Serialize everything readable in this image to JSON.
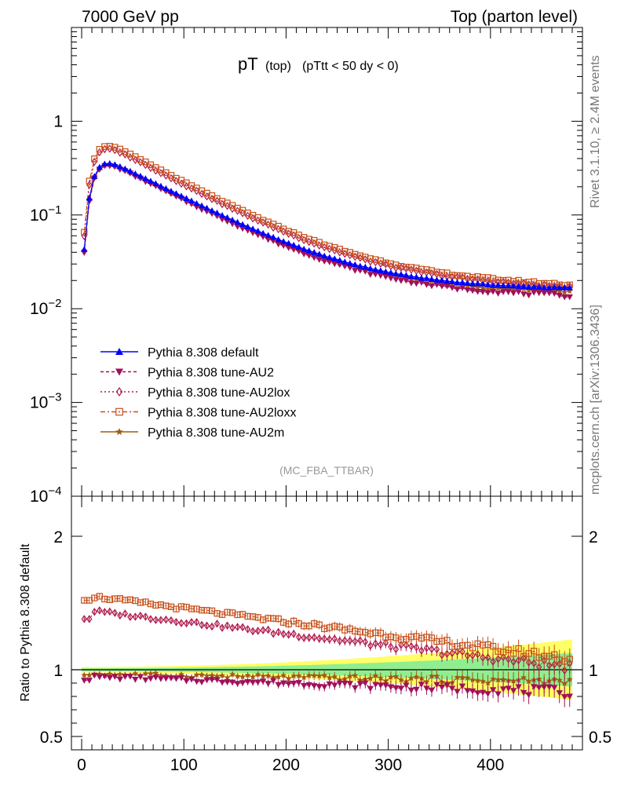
{
  "header": {
    "left": "7000 GeV pp",
    "right": "Top (parton level)"
  },
  "side": {
    "top": "Rivet 3.1.10, ≥ 2.4M events",
    "bottom": "mcplots.cern.ch [arXiv:1306.3436]"
  },
  "chart_data": {
    "type": "line",
    "title_main": "pT",
    "title_sub1": "(top)",
    "title_sub2": "(pTtt < 50 dy < 0)",
    "watermark": "(MC_FBA_TTBAR)",
    "ratio_ylabel": "Ratio to Pythia 8.308 default",
    "x_ticks": [
      "0",
      "100",
      "200",
      "300",
      "400"
    ],
    "x_range": [
      -10,
      490
    ],
    "main_yscale": "log",
    "main_yrange": [
      0.0001,
      10
    ],
    "main_yticks": [
      {
        "base": "1",
        "exp": ""
      },
      {
        "base": "10",
        "exp": "−1"
      },
      {
        "base": "10",
        "exp": "−2"
      },
      {
        "base": "10",
        "exp": "−3"
      },
      {
        "base": "10",
        "exp": "−4"
      }
    ],
    "ratio_yrange": [
      0.4,
      2.3
    ],
    "ratio_yticks": [
      "2",
      "1",
      "0.5"
    ],
    "x_bins_centers_start": 2.5,
    "x_bins_width": 5,
    "n_bins": 96,
    "legend_position": "middle-left",
    "series": [
      {
        "name": "Pythia 8.308 default",
        "color": "#0000ff",
        "marker": "triangle-up",
        "dash": "",
        "scale": 1.0,
        "ratio_offset": 0.0
      },
      {
        "name": "Pythia 8.308 tune-AU2",
        "color": "#a0105a",
        "marker": "triangle-down",
        "dash": "4,3",
        "scale": 0.92,
        "ratio_offset": -0.08
      },
      {
        "name": "Pythia 8.308 tune-AU2lox",
        "color": "#b0184a",
        "marker": "diamond",
        "dash": "2,3",
        "scale": 1.38,
        "ratio_offset": 0.38
      },
      {
        "name": "Pythia 8.308 tune-AU2loxx",
        "color": "#c8501a",
        "marker": "square",
        "dash": "6,3,2,3",
        "scale": 1.52,
        "ratio_offset": 0.52
      },
      {
        "name": "Pythia 8.308 tune-AU2m",
        "color": "#a05a10",
        "marker": "star",
        "dash": "",
        "scale": 0.96,
        "ratio_offset": -0.04
      }
    ],
    "band_colors": {
      "inner": "#90ee90",
      "outer": "#ffff66"
    }
  }
}
